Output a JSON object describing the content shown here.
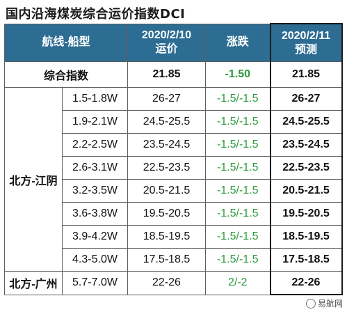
{
  "title": "国内沿海煤炭综合运价指数DCI",
  "header": {
    "route": "航线-船型",
    "current_date": "2020/2/10",
    "current_label": "运价",
    "change": "涨跌",
    "forecast_date": "2020/2/11",
    "forecast_label": "预测"
  },
  "index_row": {
    "label": "综合指数",
    "current": "21.85",
    "change": "-1.50",
    "forecast": "21.85"
  },
  "regions": [
    {
      "name": "北方-江阴",
      "rows": [
        {
          "spec": "1.5-1.8W",
          "current": "26-27",
          "change": "-1.5/-1.5",
          "forecast": "26-27"
        },
        {
          "spec": "1.9-2.1W",
          "current": "24.5-25.5",
          "change": "-1.5/-1.5",
          "forecast": "24.5-25.5"
        },
        {
          "spec": "2.2-2.5W",
          "current": "23.5-24.5",
          "change": "-1.5/-1.5",
          "forecast": "23.5-24.5"
        },
        {
          "spec": "2.6-3.1W",
          "current": "22.5-23.5",
          "change": "-1.5/-1.5",
          "forecast": "22.5-23.5"
        },
        {
          "spec": "3.2-3.5W",
          "current": "20.5-21.5",
          "change": "-1.5/-1.5",
          "forecast": "20.5-21.5"
        },
        {
          "spec": "3.6-3.8W",
          "current": "19.5-20.5",
          "change": "-1.5/-1.5",
          "forecast": "19.5-20.5"
        },
        {
          "spec": "3.9-4.2W",
          "current": "18.5-19.5",
          "change": "-1.5/-1.5",
          "forecast": "18.5-19.5"
        },
        {
          "spec": "4.3-5.0W",
          "current": "17.5-18.5",
          "change": "-1.5/-1.5",
          "forecast": "17.5-18.5"
        }
      ]
    },
    {
      "name": "北方-广州",
      "rows": [
        {
          "spec": "5.7-7.0W",
          "current": "22-26",
          "change": "2/-2",
          "forecast": "22-26"
        }
      ]
    }
  ],
  "watermark": "易航网",
  "colors": {
    "header_bg": "#2d6d93",
    "header_text": "#ffffff",
    "change_text": "#2a9a3b",
    "border": "#5f5f5f"
  }
}
